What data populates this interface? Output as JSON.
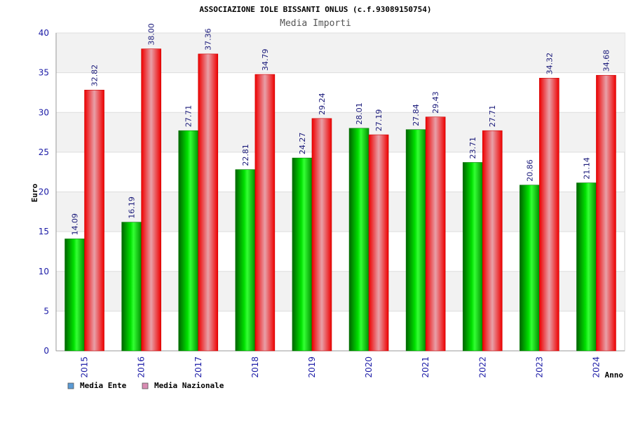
{
  "chart_data": {
    "type": "bar",
    "title": "ASSOCIAZIONE IOLE BISSANTI ONLUS (c.f.93089150754)",
    "subtitle": "Media Importi",
    "xlabel": "Anno",
    "ylabel": "Euro",
    "ylim": [
      0,
      40
    ],
    "yticks": [
      0,
      5,
      10,
      15,
      20,
      25,
      30,
      35,
      40
    ],
    "grid": true,
    "legend_position": "bottom-left",
    "categories": [
      "2015",
      "2016",
      "2017",
      "2018",
      "2019",
      "2020",
      "2021",
      "2022",
      "2023",
      "2024"
    ],
    "series": [
      {
        "name": "Media Ente",
        "legend_color": "#5b9bd5",
        "bar_color": "#00b000",
        "values": [
          14.09,
          16.19,
          27.71,
          22.81,
          24.27,
          28.01,
          27.84,
          23.71,
          20.86,
          21.14
        ],
        "labels": [
          "14.09",
          "16.19",
          "27.71",
          "22.81",
          "24.27",
          "28.01",
          "27.84",
          "23.71",
          "20.86",
          "21.14"
        ]
      },
      {
        "name": "Media Nazionale",
        "legend_color": "#d98cb3",
        "bar_color": "#ee1111",
        "values": [
          32.82,
          38.0,
          37.36,
          34.79,
          29.24,
          27.19,
          29.43,
          27.71,
          34.32,
          34.68
        ],
        "labels": [
          "32.82",
          "38.00",
          "37.36",
          "34.79",
          "29.24",
          "27.19",
          "29.43",
          "27.71",
          "34.32",
          "34.68"
        ]
      }
    ]
  }
}
